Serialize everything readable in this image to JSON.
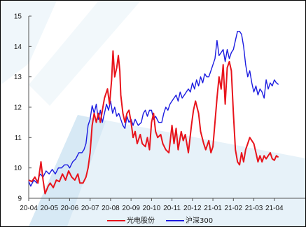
{
  "chart_data": {
    "type": "line",
    "ylim": [
      9,
      15
    ],
    "yticks": [
      9,
      10,
      11,
      12,
      13,
      14,
      15
    ],
    "xlim": [
      0,
      13
    ],
    "xticks": [
      {
        "x": 0,
        "label": "20-04"
      },
      {
        "x": 1,
        "label": "20-05"
      },
      {
        "x": 2,
        "label": "20-06"
      },
      {
        "x": 3,
        "label": "20-07"
      },
      {
        "x": 4,
        "label": "20-08"
      },
      {
        "x": 5,
        "label": "20-09"
      },
      {
        "x": 6,
        "label": "20-10"
      },
      {
        "x": 7,
        "label": "20-11"
      },
      {
        "x": 8,
        "label": "20-12"
      },
      {
        "x": 9,
        "label": "21-01"
      },
      {
        "x": 10,
        "label": "21-02"
      },
      {
        "x": 11,
        "label": "21-03"
      },
      {
        "x": 12,
        "label": "21-04"
      }
    ],
    "legend_position": "bottom",
    "grid": false,
    "series": [
      {
        "name": "光电股份",
        "color": "#e8141c",
        "points": [
          [
            0.0,
            9.6
          ],
          [
            0.15,
            9.55
          ],
          [
            0.3,
            9.7
          ],
          [
            0.45,
            9.5
          ],
          [
            0.6,
            10.2
          ],
          [
            0.7,
            9.6
          ],
          [
            0.8,
            9.15
          ],
          [
            0.95,
            9.4
          ],
          [
            1.05,
            9.5
          ],
          [
            1.2,
            9.35
          ],
          [
            1.35,
            9.6
          ],
          [
            1.5,
            9.55
          ],
          [
            1.65,
            9.8
          ],
          [
            1.8,
            9.6
          ],
          [
            1.95,
            9.9
          ],
          [
            2.1,
            9.7
          ],
          [
            2.25,
            9.6
          ],
          [
            2.4,
            9.8
          ],
          [
            2.5,
            9.5
          ],
          [
            2.65,
            9.5
          ],
          [
            2.8,
            9.7
          ],
          [
            2.9,
            10.0
          ],
          [
            3.0,
            10.5
          ],
          [
            3.1,
            11.4
          ],
          [
            3.2,
            11.8
          ],
          [
            3.3,
            11.5
          ],
          [
            3.4,
            11.8
          ],
          [
            3.5,
            11.5
          ],
          [
            3.6,
            11.9
          ],
          [
            3.7,
            12.3
          ],
          [
            3.85,
            12.6
          ],
          [
            3.95,
            12.1
          ],
          [
            4.05,
            12.9
          ],
          [
            4.12,
            13.85
          ],
          [
            4.2,
            13.0
          ],
          [
            4.3,
            13.3
          ],
          [
            4.38,
            13.7
          ],
          [
            4.45,
            13.2
          ],
          [
            4.5,
            12.4
          ],
          [
            4.6,
            11.8
          ],
          [
            4.7,
            11.5
          ],
          [
            4.8,
            11.8
          ],
          [
            4.9,
            11.9
          ],
          [
            5.0,
            11.5
          ],
          [
            5.1,
            11.0
          ],
          [
            5.2,
            11.2
          ],
          [
            5.3,
            10.8
          ],
          [
            5.45,
            11.1
          ],
          [
            5.55,
            10.8
          ],
          [
            5.7,
            10.7
          ],
          [
            5.8,
            11.0
          ],
          [
            5.9,
            10.6
          ],
          [
            6.0,
            11.5
          ],
          [
            6.1,
            11.8
          ],
          [
            6.2,
            11.2
          ],
          [
            6.3,
            11.0
          ],
          [
            6.45,
            11.1
          ],
          [
            6.55,
            10.8
          ],
          [
            6.7,
            10.6
          ],
          [
            6.85,
            10.5
          ],
          [
            7.0,
            11.4
          ],
          [
            7.1,
            10.8
          ],
          [
            7.2,
            11.3
          ],
          [
            7.3,
            10.6
          ],
          [
            7.45,
            11.2
          ],
          [
            7.55,
            10.9
          ],
          [
            7.65,
            11.1
          ],
          [
            7.8,
            10.5
          ],
          [
            7.95,
            11.4
          ],
          [
            8.05,
            11.9
          ],
          [
            8.15,
            12.2
          ],
          [
            8.3,
            11.8
          ],
          [
            8.4,
            11.2
          ],
          [
            8.55,
            10.8
          ],
          [
            8.65,
            10.6
          ],
          [
            8.8,
            10.9
          ],
          [
            8.9,
            10.5
          ],
          [
            9.0,
            10.7
          ],
          [
            9.1,
            11.5
          ],
          [
            9.2,
            12.3
          ],
          [
            9.3,
            13.0
          ],
          [
            9.4,
            12.6
          ],
          [
            9.5,
            13.4
          ],
          [
            9.6,
            12.1
          ],
          [
            9.7,
            13.3
          ],
          [
            9.8,
            13.5
          ],
          [
            9.9,
            13.2
          ],
          [
            10.0,
            11.8
          ],
          [
            10.1,
            10.6
          ],
          [
            10.2,
            10.2
          ],
          [
            10.3,
            10.1
          ],
          [
            10.4,
            10.5
          ],
          [
            10.5,
            10.2
          ],
          [
            10.6,
            10.6
          ],
          [
            10.7,
            10.8
          ],
          [
            10.8,
            11.0
          ],
          [
            10.9,
            10.9
          ],
          [
            11.0,
            10.8
          ],
          [
            11.1,
            10.5
          ],
          [
            11.2,
            10.2
          ],
          [
            11.3,
            10.4
          ],
          [
            11.4,
            10.2
          ],
          [
            11.5,
            10.4
          ],
          [
            11.6,
            10.3
          ],
          [
            11.7,
            10.4
          ],
          [
            11.8,
            10.5
          ],
          [
            11.9,
            10.3
          ],
          [
            12.0,
            10.25
          ],
          [
            12.1,
            10.4
          ],
          [
            12.2,
            10.35
          ]
        ]
      },
      {
        "name": "沪深300",
        "color": "#1c1ce0",
        "points": [
          [
            0.0,
            9.55
          ],
          [
            0.1,
            9.4
          ],
          [
            0.25,
            9.6
          ],
          [
            0.4,
            9.5
          ],
          [
            0.55,
            9.8
          ],
          [
            0.7,
            9.7
          ],
          [
            0.85,
            9.9
          ],
          [
            1.0,
            9.8
          ],
          [
            1.15,
            9.95
          ],
          [
            1.3,
            9.8
          ],
          [
            1.45,
            10.0
          ],
          [
            1.6,
            10.0
          ],
          [
            1.75,
            10.1
          ],
          [
            1.9,
            10.1
          ],
          [
            2.0,
            10.0
          ],
          [
            2.15,
            10.2
          ],
          [
            2.3,
            10.3
          ],
          [
            2.45,
            10.5
          ],
          [
            2.6,
            10.5
          ],
          [
            2.7,
            10.6
          ],
          [
            2.8,
            10.8
          ],
          [
            2.9,
            11.4
          ],
          [
            3.0,
            11.6
          ],
          [
            3.1,
            12.05
          ],
          [
            3.2,
            11.8
          ],
          [
            3.3,
            12.1
          ],
          [
            3.4,
            11.6
          ],
          [
            3.5,
            11.9
          ],
          [
            3.6,
            11.5
          ],
          [
            3.7,
            11.8
          ],
          [
            3.8,
            12.1
          ],
          [
            3.9,
            11.9
          ],
          [
            4.0,
            12.2
          ],
          [
            4.1,
            11.8
          ],
          [
            4.2,
            12.0
          ],
          [
            4.3,
            11.7
          ],
          [
            4.4,
            11.8
          ],
          [
            4.5,
            11.6
          ],
          [
            4.6,
            11.4
          ],
          [
            4.7,
            11.3
          ],
          [
            4.8,
            11.7
          ],
          [
            4.9,
            11.5
          ],
          [
            5.0,
            11.6
          ],
          [
            5.1,
            11.4
          ],
          [
            5.2,
            11.6
          ],
          [
            5.35,
            11.4
          ],
          [
            5.5,
            11.5
          ],
          [
            5.6,
            11.8
          ],
          [
            5.7,
            11.9
          ],
          [
            5.8,
            11.7
          ],
          [
            5.9,
            11.9
          ],
          [
            6.0,
            11.9
          ],
          [
            6.1,
            11.6
          ],
          [
            6.2,
            11.7
          ],
          [
            6.35,
            11.5
          ],
          [
            6.5,
            11.5
          ],
          [
            6.6,
            11.8
          ],
          [
            6.7,
            12.0
          ],
          [
            6.8,
            11.9
          ],
          [
            6.9,
            12.1
          ],
          [
            7.0,
            12.2
          ],
          [
            7.1,
            12.3
          ],
          [
            7.2,
            12.4
          ],
          [
            7.3,
            12.2
          ],
          [
            7.4,
            12.5
          ],
          [
            7.5,
            12.3
          ],
          [
            7.6,
            12.4
          ],
          [
            7.7,
            12.5
          ],
          [
            7.8,
            12.6
          ],
          [
            7.9,
            12.5
          ],
          [
            8.0,
            12.8
          ],
          [
            8.1,
            12.6
          ],
          [
            8.2,
            12.9
          ],
          [
            8.3,
            12.7
          ],
          [
            8.4,
            13.0
          ],
          [
            8.5,
            12.8
          ],
          [
            8.6,
            13.1
          ],
          [
            8.7,
            13.0
          ],
          [
            8.8,
            13.0
          ],
          [
            8.9,
            13.2
          ],
          [
            9.0,
            13.4
          ],
          [
            9.1,
            13.6
          ],
          [
            9.2,
            14.2
          ],
          [
            9.3,
            13.7
          ],
          [
            9.4,
            13.8
          ],
          [
            9.5,
            13.9
          ],
          [
            9.6,
            13.5
          ],
          [
            9.7,
            13.9
          ],
          [
            9.8,
            13.6
          ],
          [
            9.9,
            13.8
          ],
          [
            10.0,
            13.9
          ],
          [
            10.1,
            14.2
          ],
          [
            10.2,
            14.5
          ],
          [
            10.3,
            14.5
          ],
          [
            10.4,
            14.4
          ],
          [
            10.5,
            14.0
          ],
          [
            10.6,
            13.4
          ],
          [
            10.7,
            13.0
          ],
          [
            10.8,
            13.2
          ],
          [
            10.9,
            12.8
          ],
          [
            11.0,
            12.5
          ],
          [
            11.1,
            12.7
          ],
          [
            11.2,
            12.4
          ],
          [
            11.3,
            12.6
          ],
          [
            11.4,
            12.5
          ],
          [
            11.5,
            12.3
          ],
          [
            11.6,
            12.9
          ],
          [
            11.7,
            12.6
          ],
          [
            11.8,
            12.8
          ],
          [
            11.9,
            12.7
          ],
          [
            12.0,
            12.9
          ],
          [
            12.1,
            12.8
          ],
          [
            12.2,
            12.75
          ]
        ]
      }
    ]
  }
}
